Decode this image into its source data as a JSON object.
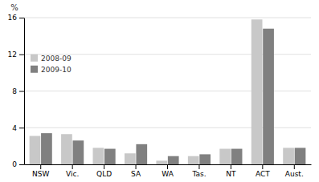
{
  "chart_data": {
    "type": "bar",
    "categories": [
      "NSW",
      "Vic.",
      "QLD",
      "SA",
      "WA",
      "Tas.",
      "NT",
      "ACT",
      "Aust."
    ],
    "series": [
      {
        "name": "2008-09",
        "color": "#c8c8c8",
        "values": [
          3.1,
          3.3,
          1.8,
          1.2,
          0.4,
          0.9,
          1.7,
          15.8,
          1.8
        ]
      },
      {
        "name": "2009-10",
        "color": "#808080",
        "values": [
          3.4,
          2.6,
          1.7,
          2.2,
          0.9,
          1.1,
          1.7,
          14.8,
          1.8
        ]
      }
    ],
    "y_label": "%",
    "ylim": [
      0,
      16
    ],
    "yticks": [
      0,
      4,
      8,
      12,
      16
    ],
    "grid": true,
    "legend": "upper-left"
  }
}
